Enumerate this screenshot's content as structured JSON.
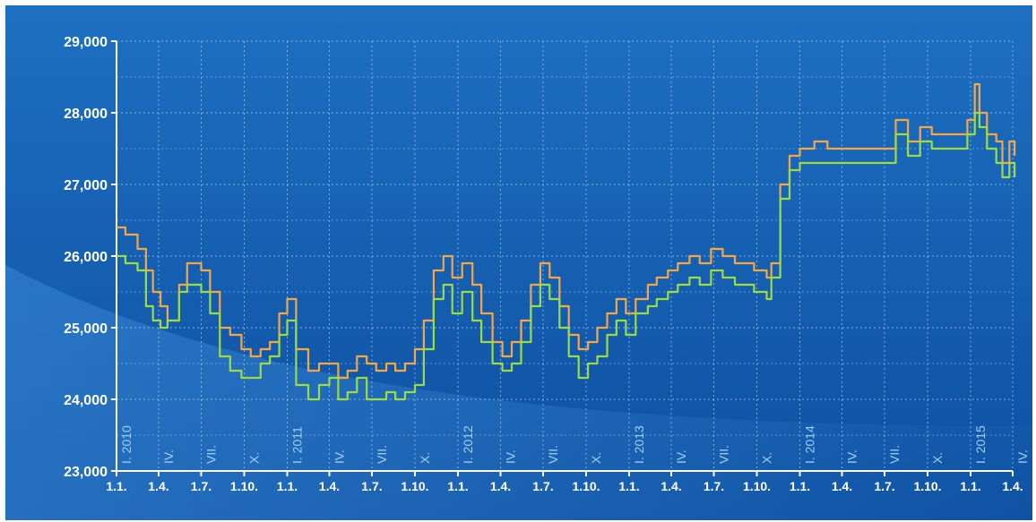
{
  "chart_data": {
    "type": "line",
    "title": "",
    "xlabel": "",
    "ylabel": "",
    "ylim": [
      23000,
      29000
    ],
    "grid": true,
    "y_ticks": [
      "29,000",
      "28,000",
      "27,000",
      "26,000",
      "25,000",
      "24,000",
      "23,000"
    ],
    "y_tick_values": [
      29000,
      28000,
      27000,
      26000,
      25000,
      24000,
      23000
    ],
    "x_ticks": [
      "1.1.",
      "1.4.",
      "1.7.",
      "1.10.",
      "1.1.",
      "1.4.",
      "1.7.",
      "1.10.",
      "1.1.",
      "1.4.",
      "1.7.",
      "1.10.",
      "1.1.",
      "1.4.",
      "1.7.",
      "1.10.",
      "1.1.",
      "1.4.",
      "1.7.",
      "1.10.",
      "1.1.",
      "1.4."
    ],
    "quarter_labels": [
      "I. 2010",
      "IV.",
      "VII.",
      "X.",
      "I. 2011",
      "IV.",
      "VII.",
      "X.",
      "I. 2012",
      "IV.",
      "VII.",
      "X.",
      "I. 2013",
      "IV.",
      "VII.",
      "X.",
      "I. 2014",
      "IV.",
      "VII.",
      "X.",
      "I. 2015",
      "IV."
    ],
    "series": [
      {
        "color": "#f0a848",
        "x": [
          "2010-01-01",
          "2010-01-20",
          "2010-02-15",
          "2010-03-05",
          "2010-03-20",
          "2010-04-05",
          "2010-04-20",
          "2010-05-15",
          "2010-06-01",
          "2010-06-20",
          "2010-07-01",
          "2010-07-20",
          "2010-08-10",
          "2010-09-01",
          "2010-09-25",
          "2010-10-15",
          "2010-11-05",
          "2010-11-25",
          "2010-12-15",
          "2011-01-01",
          "2011-01-20",
          "2011-02-15",
          "2011-03-10",
          "2011-04-01",
          "2011-04-20",
          "2011-05-10",
          "2011-05-30",
          "2011-06-20",
          "2011-07-10",
          "2011-08-01",
          "2011-08-20",
          "2011-09-10",
          "2011-10-01",
          "2011-10-20",
          "2011-11-10",
          "2011-12-01",
          "2011-12-20",
          "2012-01-10",
          "2012-02-01",
          "2012-02-20",
          "2012-03-15",
          "2012-04-05",
          "2012-04-25",
          "2012-05-15",
          "2012-06-05",
          "2012-06-25",
          "2012-07-15",
          "2012-08-05",
          "2012-08-25",
          "2012-09-15",
          "2012-10-05",
          "2012-10-25",
          "2012-11-15",
          "2012-12-05",
          "2012-12-25",
          "2013-01-15",
          "2013-02-10",
          "2013-03-01",
          "2013-03-25",
          "2013-04-15",
          "2013-05-10",
          "2013-06-01",
          "2013-06-25",
          "2013-07-20",
          "2013-08-15",
          "2013-09-05",
          "2013-09-25",
          "2013-10-15",
          "2013-10-22",
          "2013-11-01",
          "2013-11-20",
          "2013-12-10",
          "2014-01-01",
          "2014-02-01",
          "2014-03-01",
          "2014-04-01",
          "2014-05-01",
          "2014-06-01",
          "2014-07-01",
          "2014-07-25",
          "2014-08-20",
          "2014-09-15",
          "2014-10-10",
          "2014-11-05",
          "2014-12-01",
          "2014-12-25",
          "2015-01-10",
          "2015-01-20",
          "2015-02-05",
          "2015-02-25",
          "2015-03-10",
          "2015-03-25",
          "2015-04-05"
        ],
        "values": [
          26400,
          26300,
          26100,
          25800,
          25500,
          25300,
          25100,
          25600,
          25900,
          25900,
          25800,
          25500,
          25000,
          24900,
          24700,
          24600,
          24700,
          24800,
          25200,
          25400,
          24700,
          24400,
          24500,
          24500,
          24300,
          24400,
          24600,
          24500,
          24400,
          24500,
          24400,
          24500,
          24700,
          25100,
          25800,
          26000,
          25700,
          25900,
          25600,
          25200,
          24800,
          24600,
          24800,
          25100,
          25600,
          25900,
          25700,
          25300,
          24900,
          24700,
          24800,
          25000,
          25200,
          25400,
          25200,
          25400,
          25600,
          25700,
          25800,
          25900,
          26000,
          25900,
          26100,
          26000,
          25900,
          25900,
          25800,
          25800,
          25700,
          25900,
          27000,
          27400,
          27500,
          27600,
          27500,
          27500,
          27500,
          27500,
          27500,
          27900,
          27600,
          27800,
          27700,
          27700,
          27700,
          27900,
          28400,
          28000,
          27700,
          27600,
          27300,
          27600,
          27400
        ]
      },
      {
        "color": "#9adc48",
        "x": [
          "2010-01-01",
          "2010-01-20",
          "2010-02-15",
          "2010-03-05",
          "2010-03-20",
          "2010-04-05",
          "2010-04-20",
          "2010-05-15",
          "2010-06-01",
          "2010-06-20",
          "2010-07-01",
          "2010-07-20",
          "2010-08-10",
          "2010-09-01",
          "2010-09-25",
          "2010-10-15",
          "2010-11-05",
          "2010-11-25",
          "2010-12-15",
          "2011-01-01",
          "2011-01-20",
          "2011-02-15",
          "2011-03-10",
          "2011-04-01",
          "2011-04-20",
          "2011-05-10",
          "2011-05-30",
          "2011-06-20",
          "2011-07-10",
          "2011-08-01",
          "2011-08-20",
          "2011-09-10",
          "2011-10-01",
          "2011-10-20",
          "2011-11-10",
          "2011-12-01",
          "2011-12-20",
          "2012-01-10",
          "2012-02-01",
          "2012-02-20",
          "2012-03-15",
          "2012-04-05",
          "2012-04-25",
          "2012-05-15",
          "2012-06-05",
          "2012-06-25",
          "2012-07-15",
          "2012-08-05",
          "2012-08-25",
          "2012-09-15",
          "2012-10-05",
          "2012-10-25",
          "2012-11-15",
          "2012-12-05",
          "2012-12-25",
          "2013-01-15",
          "2013-02-10",
          "2013-03-01",
          "2013-03-25",
          "2013-04-15",
          "2013-05-10",
          "2013-06-01",
          "2013-06-25",
          "2013-07-20",
          "2013-08-15",
          "2013-09-05",
          "2013-09-25",
          "2013-10-15",
          "2013-10-22",
          "2013-11-01",
          "2013-11-20",
          "2013-12-10",
          "2014-01-01",
          "2014-02-01",
          "2014-03-01",
          "2014-04-01",
          "2014-05-01",
          "2014-06-01",
          "2014-07-01",
          "2014-07-25",
          "2014-08-20",
          "2014-09-15",
          "2014-10-10",
          "2014-11-05",
          "2014-12-01",
          "2014-12-25",
          "2015-01-10",
          "2015-01-20",
          "2015-02-05",
          "2015-02-25",
          "2015-03-10",
          "2015-03-25",
          "2015-04-05"
        ],
        "values": [
          26000,
          25900,
          25800,
          25300,
          25100,
          25000,
          25100,
          25500,
          25600,
          25600,
          25500,
          25200,
          24600,
          24400,
          24300,
          24300,
          24500,
          24600,
          24900,
          25100,
          24200,
          24000,
          24200,
          24300,
          24000,
          24100,
          24300,
          24000,
          24000,
          24100,
          24000,
          24100,
          24200,
          24700,
          25400,
          25600,
          25200,
          25500,
          25100,
          24800,
          24500,
          24400,
          24500,
          24800,
          25300,
          25600,
          25400,
          25000,
          24600,
          24300,
          24500,
          24600,
          24900,
          25100,
          24900,
          25200,
          25300,
          25400,
          25500,
          25600,
          25700,
          25600,
          25800,
          25700,
          25600,
          25600,
          25500,
          25500,
          25400,
          25700,
          26800,
          27200,
          27300,
          27300,
          27300,
          27300,
          27300,
          27300,
          27300,
          27700,
          27400,
          27600,
          27500,
          27500,
          27500,
          27700,
          28000,
          27800,
          27500,
          27300,
          27100,
          27300,
          27100
        ]
      }
    ],
    "colors": {
      "background_top": "#1e6fc2",
      "background_bottom": "#0d4fa0",
      "grid": "#9cc8f0"
    }
  }
}
